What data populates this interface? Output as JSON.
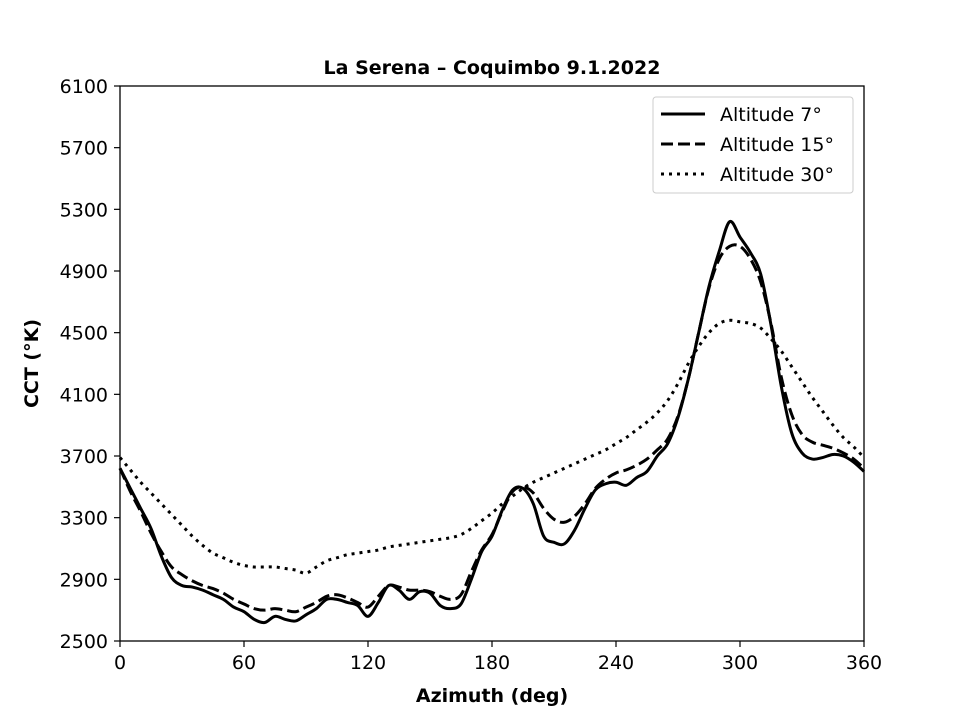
{
  "chart_data": {
    "type": "line",
    "title": "La Serena – Coquimbo 9.1.2022",
    "xlabel": "Azimuth (deg)",
    "ylabel": "CCT (°K)",
    "xlim": [
      0,
      360
    ],
    "ylim": [
      2500,
      6100
    ],
    "xticks": [
      "0",
      "60",
      "120",
      "180",
      "240",
      "300",
      "360"
    ],
    "yticks": [
      "2500",
      "2900",
      "3300",
      "3700",
      "4100",
      "4500",
      "4900",
      "5300",
      "5700",
      "6100"
    ],
    "grid": false,
    "legend_position": "upper right",
    "series": [
      {
        "name": "Altitude 7°",
        "style": "solid",
        "color": "#000000",
        "x": [
          0,
          5,
          10,
          15,
          20,
          25,
          30,
          35,
          40,
          45,
          50,
          55,
          60,
          65,
          70,
          75,
          80,
          85,
          90,
          95,
          100,
          105,
          110,
          115,
          120,
          125,
          130,
          135,
          140,
          145,
          150,
          155,
          160,
          165,
          170,
          175,
          180,
          185,
          190,
          195,
          200,
          205,
          210,
          215,
          220,
          225,
          230,
          235,
          240,
          245,
          250,
          255,
          260,
          265,
          270,
          275,
          280,
          285,
          290,
          295,
          300,
          305,
          310,
          315,
          320,
          325,
          330,
          335,
          340,
          345,
          350,
          355,
          360
        ],
        "y": [
          3620,
          3490,
          3360,
          3230,
          3050,
          2910,
          2860,
          2850,
          2830,
          2800,
          2770,
          2720,
          2690,
          2640,
          2620,
          2660,
          2640,
          2630,
          2670,
          2710,
          2770,
          2770,
          2750,
          2730,
          2660,
          2750,
          2860,
          2830,
          2770,
          2820,
          2810,
          2730,
          2710,
          2740,
          2900,
          3080,
          3180,
          3350,
          3480,
          3490,
          3390,
          3180,
          3140,
          3130,
          3220,
          3360,
          3480,
          3520,
          3530,
          3510,
          3560,
          3600,
          3700,
          3780,
          3950,
          4200,
          4500,
          4800,
          5030,
          5220,
          5120,
          5020,
          4880,
          4550,
          4150,
          3850,
          3720,
          3680,
          3690,
          3710,
          3700,
          3660,
          3600
        ]
      },
      {
        "name": "Altitude 15°",
        "style": "dashed",
        "color": "#000000",
        "x": [
          0,
          5,
          10,
          15,
          20,
          25,
          30,
          35,
          40,
          45,
          50,
          55,
          60,
          65,
          70,
          75,
          80,
          85,
          90,
          95,
          100,
          105,
          110,
          115,
          120,
          125,
          130,
          135,
          140,
          145,
          150,
          155,
          160,
          165,
          170,
          175,
          180,
          185,
          190,
          195,
          200,
          205,
          210,
          215,
          220,
          225,
          230,
          235,
          240,
          245,
          250,
          255,
          260,
          265,
          270,
          275,
          280,
          285,
          290,
          295,
          300,
          305,
          310,
          315,
          320,
          325,
          330,
          335,
          340,
          345,
          350,
          355,
          360
        ],
        "y": [
          3620,
          3470,
          3340,
          3200,
          3080,
          2980,
          2930,
          2890,
          2860,
          2840,
          2810,
          2770,
          2740,
          2710,
          2700,
          2710,
          2700,
          2690,
          2720,
          2750,
          2790,
          2800,
          2780,
          2750,
          2720,
          2790,
          2860,
          2850,
          2830,
          2830,
          2820,
          2790,
          2770,
          2800,
          2950,
          3090,
          3190,
          3340,
          3470,
          3500,
          3460,
          3360,
          3290,
          3270,
          3310,
          3390,
          3490,
          3550,
          3590,
          3610,
          3640,
          3680,
          3740,
          3810,
          3960,
          4200,
          4500,
          4790,
          4980,
          5060,
          5060,
          4980,
          4830,
          4560,
          4210,
          3970,
          3840,
          3790,
          3770,
          3750,
          3720,
          3680,
          3620
        ]
      },
      {
        "name": "Altitude 30°",
        "style": "dotted",
        "color": "#000000",
        "x": [
          0,
          5,
          10,
          15,
          20,
          25,
          30,
          35,
          40,
          45,
          50,
          55,
          60,
          65,
          70,
          75,
          80,
          85,
          90,
          95,
          100,
          105,
          110,
          115,
          120,
          125,
          130,
          135,
          140,
          145,
          150,
          155,
          160,
          165,
          170,
          175,
          180,
          185,
          190,
          195,
          200,
          205,
          210,
          215,
          220,
          225,
          230,
          235,
          240,
          245,
          250,
          255,
          260,
          265,
          270,
          275,
          280,
          285,
          290,
          295,
          300,
          305,
          310,
          315,
          320,
          325,
          330,
          335,
          340,
          345,
          350,
          355,
          360
        ],
        "y": [
          3690,
          3610,
          3530,
          3460,
          3390,
          3320,
          3250,
          3180,
          3120,
          3070,
          3040,
          3010,
          2990,
          2980,
          2980,
          2980,
          2970,
          2960,
          2940,
          2980,
          3020,
          3040,
          3060,
          3070,
          3080,
          3090,
          3110,
          3120,
          3130,
          3140,
          3150,
          3160,
          3170,
          3190,
          3230,
          3280,
          3330,
          3390,
          3440,
          3490,
          3530,
          3560,
          3590,
          3620,
          3650,
          3680,
          3710,
          3740,
          3780,
          3820,
          3870,
          3920,
          3980,
          4060,
          4170,
          4300,
          4410,
          4500,
          4560,
          4580,
          4570,
          4560,
          4530,
          4460,
          4380,
          4280,
          4180,
          4080,
          3990,
          3900,
          3820,
          3760,
          3690
        ]
      }
    ]
  }
}
